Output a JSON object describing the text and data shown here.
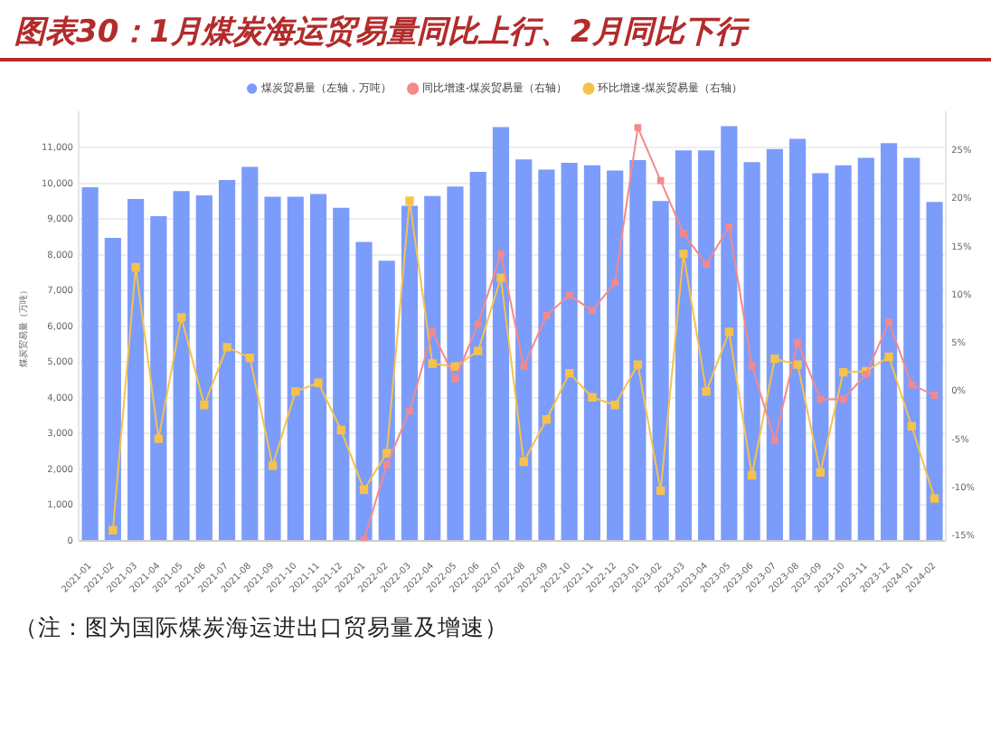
{
  "chart_data": {
    "type": "bar",
    "title": "图表30：1月煤炭海运贸易量同比上行、2月同比下行",
    "ylabel": "煤炭贸易量（万吨）",
    "annotations": [
      "（注：图为国际煤炭海运进出口贸易量及增速）"
    ],
    "categories": [
      "2021-01",
      "2021-02",
      "2021-03",
      "2021-04",
      "2021-05",
      "2021-06",
      "2021-07",
      "2021-08",
      "2021-09",
      "2021-10",
      "2021-11",
      "2021-12",
      "2022-01",
      "2022-02",
      "2022-03",
      "2022-04",
      "2022-05",
      "2022-06",
      "2022-07",
      "2022-08",
      "2022-09",
      "2022-10",
      "2022-11",
      "2022-12",
      "2023-01",
      "2023-02",
      "2023-03",
      "2023-04",
      "2023-05",
      "2023-06",
      "2023-07",
      "2023-08",
      "2023-09",
      "2023-10",
      "2023-11",
      "2023-12",
      "2024-01",
      "2024-02"
    ],
    "series": [
      {
        "name": "煤炭贸易量（左轴，万吨）",
        "color": "#7b9cfb",
        "values": [
          9900,
          8480,
          9570,
          9090,
          9790,
          9670,
          10100,
          10470,
          9630,
          9630,
          9710,
          9320,
          8370,
          7840,
          9380,
          9650,
          9920,
          10330,
          11580,
          10680,
          10390,
          10580,
          10510,
          10370,
          10660,
          9510,
          10930,
          10930,
          11610,
          10600,
          10970,
          11250,
          10290,
          10510,
          10720,
          11130,
          10720,
          9490
        ]
      },
      {
        "name": "同比增速-煤炭贸易量（右轴）",
        "type": "line",
        "axis": "y2",
        "color": "#f4898b",
        "values": [
          null,
          null,
          null,
          null,
          null,
          null,
          null,
          null,
          null,
          null,
          null,
          null,
          -15.4,
          -7.6,
          -2.0,
          6.2,
          1.3,
          7.0,
          14.3,
          2.6,
          7.9,
          10.0,
          8.4,
          11.3,
          27.4,
          21.9,
          16.4,
          13.2,
          17.1,
          2.7,
          -5.1,
          5.1,
          -0.8,
          -0.8,
          1.8,
          7.2,
          0.7,
          -0.4
        ]
      },
      {
        "name": "环比增速-煤炭贸易量（右轴）",
        "type": "line",
        "axis": "y2",
        "color": "#f5c24c",
        "values": [
          null,
          -14.4,
          12.9,
          -4.9,
          7.7,
          -1.4,
          4.6,
          3.5,
          -7.7,
          0.0,
          0.9,
          -4.0,
          -10.2,
          -6.4,
          19.8,
          2.9,
          2.6,
          4.2,
          11.8,
          -7.3,
          -2.9,
          1.9,
          -0.6,
          -1.4,
          2.8,
          -10.3,
          14.3,
          0.0,
          6.2,
          -8.7,
          3.4,
          2.8,
          -8.4,
          2.0,
          2.1,
          3.6,
          -3.6,
          -11.1
        ]
      }
    ],
    "ylim": [
      0,
      12000
    ],
    "yticks": [
      0,
      {
        "value": 1000,
        "label": "1,000"
      },
      {
        "value": 2000,
        "label": "2,000"
      },
      {
        "value": 3000,
        "label": "3,000"
      },
      {
        "value": 4000,
        "label": "4,000"
      },
      {
        "value": 5000,
        "label": "5,000"
      },
      {
        "value": 6000,
        "label": "6,000"
      },
      {
        "value": 7000,
        "label": "7,000"
      },
      {
        "value": 8000,
        "label": "8,000"
      },
      {
        "value": 9000,
        "label": "9,000"
      },
      {
        "value": 10000,
        "label": "10,000"
      },
      {
        "value": 11000,
        "label": "11,000"
      }
    ],
    "y2lim": [
      -15.5,
      29
    ],
    "y2ticks": [
      {
        "value": -15,
        "label": "-15%"
      },
      {
        "value": -10,
        "label": "-10%"
      },
      {
        "value": -5,
        "label": "-5%"
      },
      {
        "value": 0,
        "label": "0%"
      },
      {
        "value": 5,
        "label": "5%"
      },
      {
        "value": 10,
        "label": "10%"
      },
      {
        "value": 15,
        "label": "15%"
      },
      {
        "value": 20,
        "label": "20%"
      },
      {
        "value": 25,
        "label": "25%"
      }
    ],
    "grid": "y",
    "legend": "top",
    "marker": "square"
  }
}
